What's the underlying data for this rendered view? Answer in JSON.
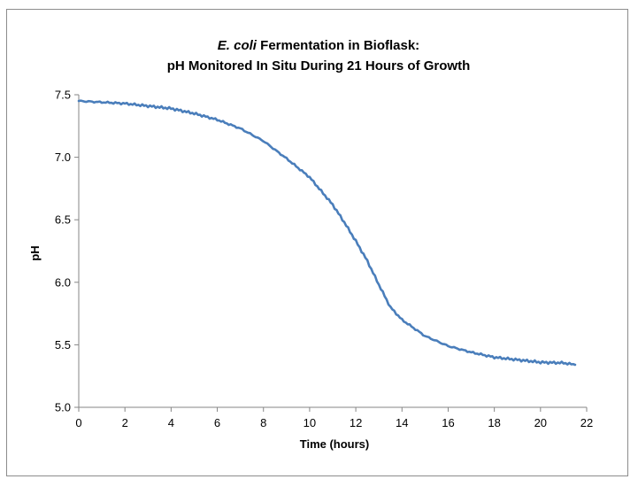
{
  "chart_data": {
    "type": "line",
    "title_italic": "E. coli",
    "title_line1_rest": " Fermentation in Bioflask:",
    "title_line2": "pH Monitored In Situ During 21 Hours of Growth",
    "xlabel": "Time (hours)",
    "ylabel": "pH",
    "xlim": [
      0,
      22
    ],
    "ylim": [
      5.0,
      7.5
    ],
    "x_ticks": [
      0,
      2,
      4,
      6,
      8,
      10,
      12,
      14,
      16,
      18,
      20,
      22
    ],
    "y_ticks": [
      "5.0",
      "5.5",
      "6.0",
      "6.5",
      "7.0",
      "7.5"
    ],
    "grid": false,
    "legend": "none",
    "series": [
      {
        "color": "#4a7ebb",
        "x": [
          0,
          1,
          2,
          3,
          4,
          5,
          6,
          7,
          8,
          9,
          10,
          11,
          11.5,
          12,
          12.5,
          13,
          13.5,
          14,
          15,
          16,
          17,
          18,
          19,
          20,
          21,
          21.5
        ],
        "y": [
          7.45,
          7.44,
          7.43,
          7.41,
          7.39,
          7.35,
          7.3,
          7.23,
          7.13,
          6.99,
          6.84,
          6.62,
          6.48,
          6.33,
          6.17,
          5.98,
          5.8,
          5.7,
          5.57,
          5.49,
          5.44,
          5.4,
          5.38,
          5.36,
          5.355,
          5.34
        ]
      }
    ]
  }
}
